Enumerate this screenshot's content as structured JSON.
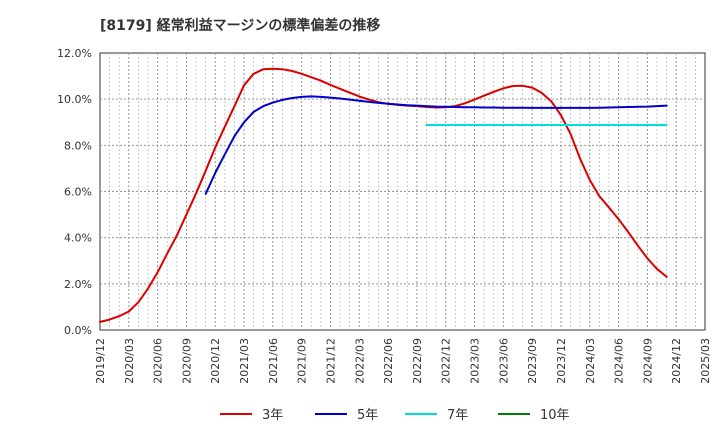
{
  "chart_data": {
    "type": "line",
    "title": "[8179]  経常利益マージンの標準偏差の推移",
    "xlabel": "",
    "ylabel": "",
    "ylim": [
      0,
      12
    ],
    "y_ticks": [
      0,
      2,
      4,
      6,
      8,
      10,
      12
    ],
    "y_tick_labels": [
      "0.0%",
      "2.0%",
      "4.0%",
      "6.0%",
      "8.0%",
      "10.0%",
      "12.0%"
    ],
    "x_tick_labels": [
      "2019/12",
      "2020/03",
      "2020/06",
      "2020/09",
      "2020/12",
      "2021/03",
      "2021/06",
      "2021/09",
      "2021/12",
      "2022/03",
      "2022/06",
      "2022/09",
      "2022/12",
      "2023/03",
      "2023/06",
      "2023/09",
      "2023/12",
      "2024/03",
      "2024/06",
      "2024/09",
      "2024/12",
      "2025/03"
    ],
    "x_unit": "quarter index from 2019/12 (0) to 2025/03 (21)",
    "grid": true,
    "legend_position": "bottom",
    "series": [
      {
        "name": "3年",
        "color": "#dd0000",
        "points": [
          [
            0,
            0.35
          ],
          [
            0.33,
            0.45
          ],
          [
            0.67,
            0.6
          ],
          [
            1,
            0.8
          ],
          [
            1.33,
            1.2
          ],
          [
            1.67,
            1.8
          ],
          [
            2,
            2.5
          ],
          [
            2.33,
            3.3
          ],
          [
            2.67,
            4.1
          ],
          [
            3,
            5.0
          ],
          [
            3.33,
            5.9
          ],
          [
            3.67,
            6.9
          ],
          [
            4,
            7.9
          ],
          [
            4.33,
            8.8
          ],
          [
            4.67,
            9.7
          ],
          [
            5,
            10.6
          ],
          [
            5.33,
            11.1
          ],
          [
            5.67,
            11.3
          ],
          [
            6,
            11.32
          ],
          [
            6.33,
            11.3
          ],
          [
            6.67,
            11.22
          ],
          [
            7,
            11.1
          ],
          [
            7.33,
            10.95
          ],
          [
            7.67,
            10.8
          ],
          [
            8,
            10.62
          ],
          [
            8.33,
            10.45
          ],
          [
            8.67,
            10.28
          ],
          [
            9,
            10.12
          ],
          [
            9.33,
            9.98
          ],
          [
            9.67,
            9.87
          ],
          [
            10,
            9.8
          ],
          [
            10.33,
            9.75
          ],
          [
            10.67,
            9.72
          ],
          [
            11,
            9.7
          ],
          [
            11.33,
            9.66
          ],
          [
            11.67,
            9.64
          ],
          [
            12,
            9.65
          ],
          [
            12.33,
            9.7
          ],
          [
            12.67,
            9.82
          ],
          [
            13,
            9.98
          ],
          [
            13.33,
            10.15
          ],
          [
            13.67,
            10.32
          ],
          [
            14,
            10.47
          ],
          [
            14.33,
            10.57
          ],
          [
            14.67,
            10.58
          ],
          [
            15,
            10.5
          ],
          [
            15.33,
            10.28
          ],
          [
            15.67,
            9.9
          ],
          [
            16,
            9.3
          ],
          [
            16.33,
            8.5
          ],
          [
            16.67,
            7.4
          ],
          [
            17,
            6.5
          ],
          [
            17.33,
            5.8
          ],
          [
            17.67,
            5.3
          ],
          [
            18,
            4.8
          ],
          [
            18.33,
            4.25
          ],
          [
            18.67,
            3.65
          ],
          [
            19,
            3.1
          ],
          [
            19.33,
            2.65
          ],
          [
            19.67,
            2.3
          ]
        ]
      },
      {
        "name": "5年",
        "color": "#0000cc",
        "points": [
          [
            3.67,
            5.9
          ],
          [
            4,
            6.8
          ],
          [
            4.33,
            7.6
          ],
          [
            4.67,
            8.4
          ],
          [
            5,
            9.0
          ],
          [
            5.33,
            9.45
          ],
          [
            5.67,
            9.7
          ],
          [
            6,
            9.85
          ],
          [
            6.33,
            9.97
          ],
          [
            6.67,
            10.05
          ],
          [
            7,
            10.1
          ],
          [
            7.33,
            10.12
          ],
          [
            7.67,
            10.1
          ],
          [
            8,
            10.07
          ],
          [
            8.33,
            10.03
          ],
          [
            8.67,
            9.98
          ],
          [
            9,
            9.93
          ],
          [
            9.33,
            9.88
          ],
          [
            9.67,
            9.84
          ],
          [
            10,
            9.8
          ],
          [
            10.33,
            9.77
          ],
          [
            10.67,
            9.74
          ],
          [
            11,
            9.72
          ],
          [
            11.33,
            9.7
          ],
          [
            11.67,
            9.68
          ],
          [
            12,
            9.67
          ],
          [
            12.33,
            9.66
          ],
          [
            12.67,
            9.65
          ],
          [
            13,
            9.65
          ],
          [
            13.33,
            9.64
          ],
          [
            13.67,
            9.64
          ],
          [
            14,
            9.63
          ],
          [
            14.33,
            9.63
          ],
          [
            14.67,
            9.63
          ],
          [
            15,
            9.62
          ],
          [
            15.33,
            9.62
          ],
          [
            15.67,
            9.62
          ],
          [
            16,
            9.62
          ],
          [
            16.33,
            9.62
          ],
          [
            16.67,
            9.62
          ],
          [
            17,
            9.62
          ],
          [
            17.33,
            9.63
          ],
          [
            17.67,
            9.64
          ],
          [
            18,
            9.65
          ],
          [
            18.33,
            9.66
          ],
          [
            18.67,
            9.67
          ],
          [
            19,
            9.68
          ],
          [
            19.33,
            9.7
          ],
          [
            19.67,
            9.72
          ]
        ]
      },
      {
        "name": "7年",
        "color": "#00dddd",
        "points": [
          [
            11.33,
            8.88
          ],
          [
            12,
            8.88
          ],
          [
            13,
            8.88
          ],
          [
            14,
            8.88
          ],
          [
            15,
            8.88
          ],
          [
            16,
            8.88
          ],
          [
            17,
            8.88
          ],
          [
            18,
            8.88
          ],
          [
            19,
            8.88
          ],
          [
            19.67,
            8.88
          ]
        ]
      },
      {
        "name": "10年",
        "color": "#008000",
        "points": []
      }
    ]
  }
}
